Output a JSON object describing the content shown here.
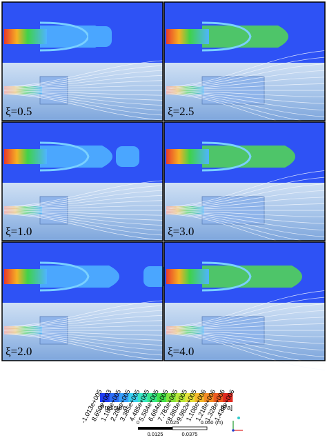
{
  "panels": [
    {
      "label": "ξ=0.5"
    },
    {
      "label": "ξ=2.5"
    },
    {
      "label": "ξ=1.0"
    },
    {
      "label": "ξ=3.0"
    },
    {
      "label": "ξ=2.0"
    },
    {
      "label": "ξ=4.0"
    }
  ],
  "colorbar": {
    "ticks": [
      "-1.013e+005",
      "8.650e+003",
      "1.186e+005",
      "2.286e+005",
      "3.385e+005",
      "4.485e+005",
      "5.584e+005",
      "6.684e+005",
      "7.783e+005",
      "8.883e+005",
      "9.982e+005",
      "1.108e+006",
      "1.218e+006",
      "1.328e+006",
      "1.438e+006"
    ],
    "title": "Pressure",
    "unit": "[Pa]"
  },
  "scale_bar": {
    "top_labels": [
      "0",
      "0.025",
      "0.050"
    ],
    "unit": "(m)",
    "bottom_labels": [
      "0.0125",
      "0.0375"
    ]
  }
}
